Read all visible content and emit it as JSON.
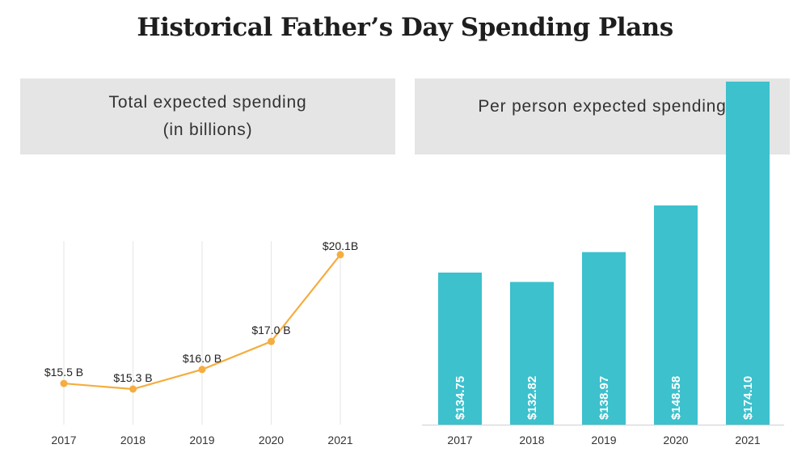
{
  "title": "Historical Father’s Day Spending Plans",
  "panels": {
    "left": {
      "title": "Total expected spending\n(in billions)"
    },
    "right": {
      "title": "Per person expected spending"
    }
  },
  "colors": {
    "line": "#f5ad3f",
    "bar": "#3cc1cd",
    "header_bg": "#e5e5e5",
    "grid": "#e6e6e6",
    "axis": "#cfcfcf"
  },
  "chart_data": [
    {
      "type": "line",
      "title": "Total expected spending\n(in billions)",
      "x": [
        "2017",
        "2018",
        "2019",
        "2020",
        "2021"
      ],
      "values": [
        15.5,
        15.3,
        16.0,
        17.0,
        20.1
      ],
      "data_labels": [
        "$15.5 B",
        "$15.3 B",
        "$16.0 B",
        "$17.0 B",
        "$20.1B"
      ],
      "grid": "vertical"
    },
    {
      "type": "bar",
      "title": "Per person expected spending",
      "categories": [
        "2017",
        "2018",
        "2019",
        "2020",
        "2021"
      ],
      "values": [
        134.75,
        132.82,
        138.97,
        148.58,
        174.1
      ],
      "data_labels": [
        "$134.75",
        "$132.82",
        "$138.97",
        "$148.58",
        "$174.10"
      ],
      "grid": "none"
    }
  ]
}
